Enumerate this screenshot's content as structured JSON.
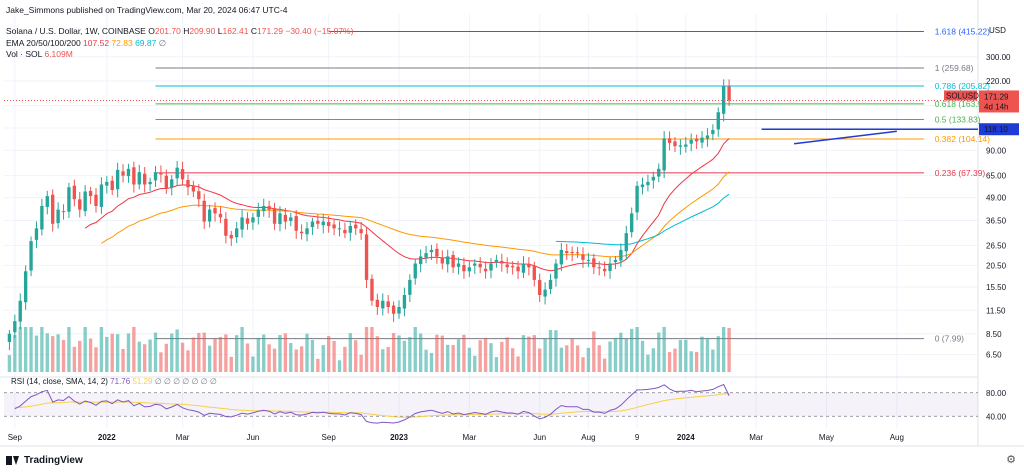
{
  "header": {
    "publisher": "Jake_Simmons published on TradingView.com, Mar 20, 2024 06:47 UTC-4",
    "symbol": "Solana / U.S. Dollar, 1W, COINBASE",
    "ohlc": {
      "o_label": "O",
      "o": "201.70",
      "h_label": "H",
      "h": "209.90",
      "l_label": "L",
      "l": "162.41",
      "c_label": "C",
      "c": "171.29",
      "chg": "−30.40 (−15.07%)"
    },
    "ema_label": "EMA 20/50/100/200",
    "ema_values": [
      "107.52",
      "72.83",
      "69.87"
    ],
    "ema_extra": "∅",
    "vol_label": "Vol · SOL",
    "vol_value": "6.109M",
    "currency": "USD"
  },
  "rsi_legend": {
    "label": "RSI (14, close, SMA, 14, 2)",
    "value": "71.76",
    "sma": "51.29",
    "extra": "∅ ∅ ∅ ∅ ∅ ∅ ∅"
  },
  "price_tags": {
    "symbol": "SOLUSD",
    "price": "171.29",
    "countdown": "4d 14h",
    "line": "118.10"
  },
  "footer": {
    "brand": "TradingView",
    "gear": "⚙"
  },
  "colors": {
    "up": "#26a69a",
    "down": "#ef5350",
    "ema20": "#f23645",
    "ema50": "#ff9800",
    "ema100": "#00bcd4",
    "ema200": "#2962ff",
    "rsi": "#7e57c2",
    "trend": "#1e3bd6"
  },
  "chart_data": {
    "type": "candlestick",
    "title": "Solana / U.S. Dollar, 1W, COINBASE",
    "ylabel": "USD",
    "y_scale": "log",
    "ylim": [
      5.2,
      520
    ],
    "y_ticks": [
      "300.00",
      "220.00",
      "160.00",
      "120.00",
      "90.00",
      "65.00",
      "49.00",
      "36.50",
      "26.50",
      "20.50",
      "15.50",
      "11.50",
      "8.50",
      "6.50"
    ],
    "y_tick_values": [
      300,
      220,
      160,
      120,
      90,
      65,
      49,
      36.5,
      26.5,
      20.5,
      15.5,
      11.5,
      8.5,
      6.5
    ],
    "x_ticks": [
      "Sep",
      "2022",
      "Mar",
      "Jun",
      "Sep",
      "2023",
      "Mar",
      "Jun",
      "Aug",
      "9",
      "2024",
      "Mar",
      "May",
      "Aug"
    ],
    "x_tick_weeks": [
      2,
      19,
      33,
      46,
      60,
      73,
      86,
      99,
      108,
      117,
      126,
      139,
      152,
      165
    ],
    "x_range_weeks": [
      0,
      180
    ],
    "fibonacci": [
      {
        "label": "1.618 (415.22)",
        "value": 415.22,
        "color": "#2962ff"
      },
      {
        "label": "1 (259.68)",
        "value": 259.68,
        "color": "#787b86"
      },
      {
        "label": "0.786 (205.82)",
        "value": 205.82,
        "color": "#00bcd4"
      },
      {
        "label": "0.618 (163.53)",
        "value": 163.53,
        "color": "#4caf50"
      },
      {
        "label": "0.5 (133.83)",
        "value": 133.83,
        "color": "#4caf50"
      },
      {
        "label": "0.382 (104.14)",
        "value": 104.14,
        "color": "#ff9800"
      },
      {
        "label": "0.236 (67.39)",
        "value": 67.39,
        "color": "#e53950"
      },
      {
        "label": "0 (7.99)",
        "value": 7.99,
        "color": "#787b86"
      }
    ],
    "horizontal_line": {
      "value": 118.1,
      "from_week": 140
    },
    "trendline": {
      "from": [
        146,
        98
      ],
      "to": [
        165,
        115
      ]
    },
    "closes": [
      8.5,
      10,
      13,
      19,
      28,
      33,
      44,
      50,
      35,
      42,
      41,
      56,
      48,
      42,
      53,
      50,
      44,
      58,
      60,
      54,
      70,
      65,
      71,
      58,
      68,
      58,
      60,
      68,
      66,
      55,
      62,
      72,
      62,
      56,
      53,
      48,
      36,
      42,
      40,
      38,
      30,
      29,
      33,
      38,
      35,
      38,
      42,
      44,
      42,
      35,
      40,
      36,
      38,
      32,
      31,
      33,
      36,
      35,
      36,
      34,
      33,
      33,
      31,
      34,
      33,
      31,
      17,
      13,
      12,
      13,
      12,
      11,
      12,
      14,
      17,
      21,
      23,
      24,
      25,
      23,
      21,
      23,
      20,
      21,
      19,
      20,
      21,
      20,
      19,
      21,
      22,
      21,
      20,
      20,
      19,
      21,
      20,
      17,
      14,
      15,
      17,
      21,
      25,
      24,
      24,
      24,
      22,
      22,
      20,
      20,
      19,
      21,
      22,
      25,
      31,
      40,
      57,
      58,
      60,
      64,
      71,
      105,
      99,
      95,
      96,
      97,
      103,
      101,
      106,
      109,
      117,
      147,
      205,
      171
    ],
    "volume_note": "Vol · SOL bars follow candle colors",
    "rsi": {
      "upper": 80,
      "lower": 40,
      "last": 71.76,
      "sma_last": 51.29
    }
  }
}
